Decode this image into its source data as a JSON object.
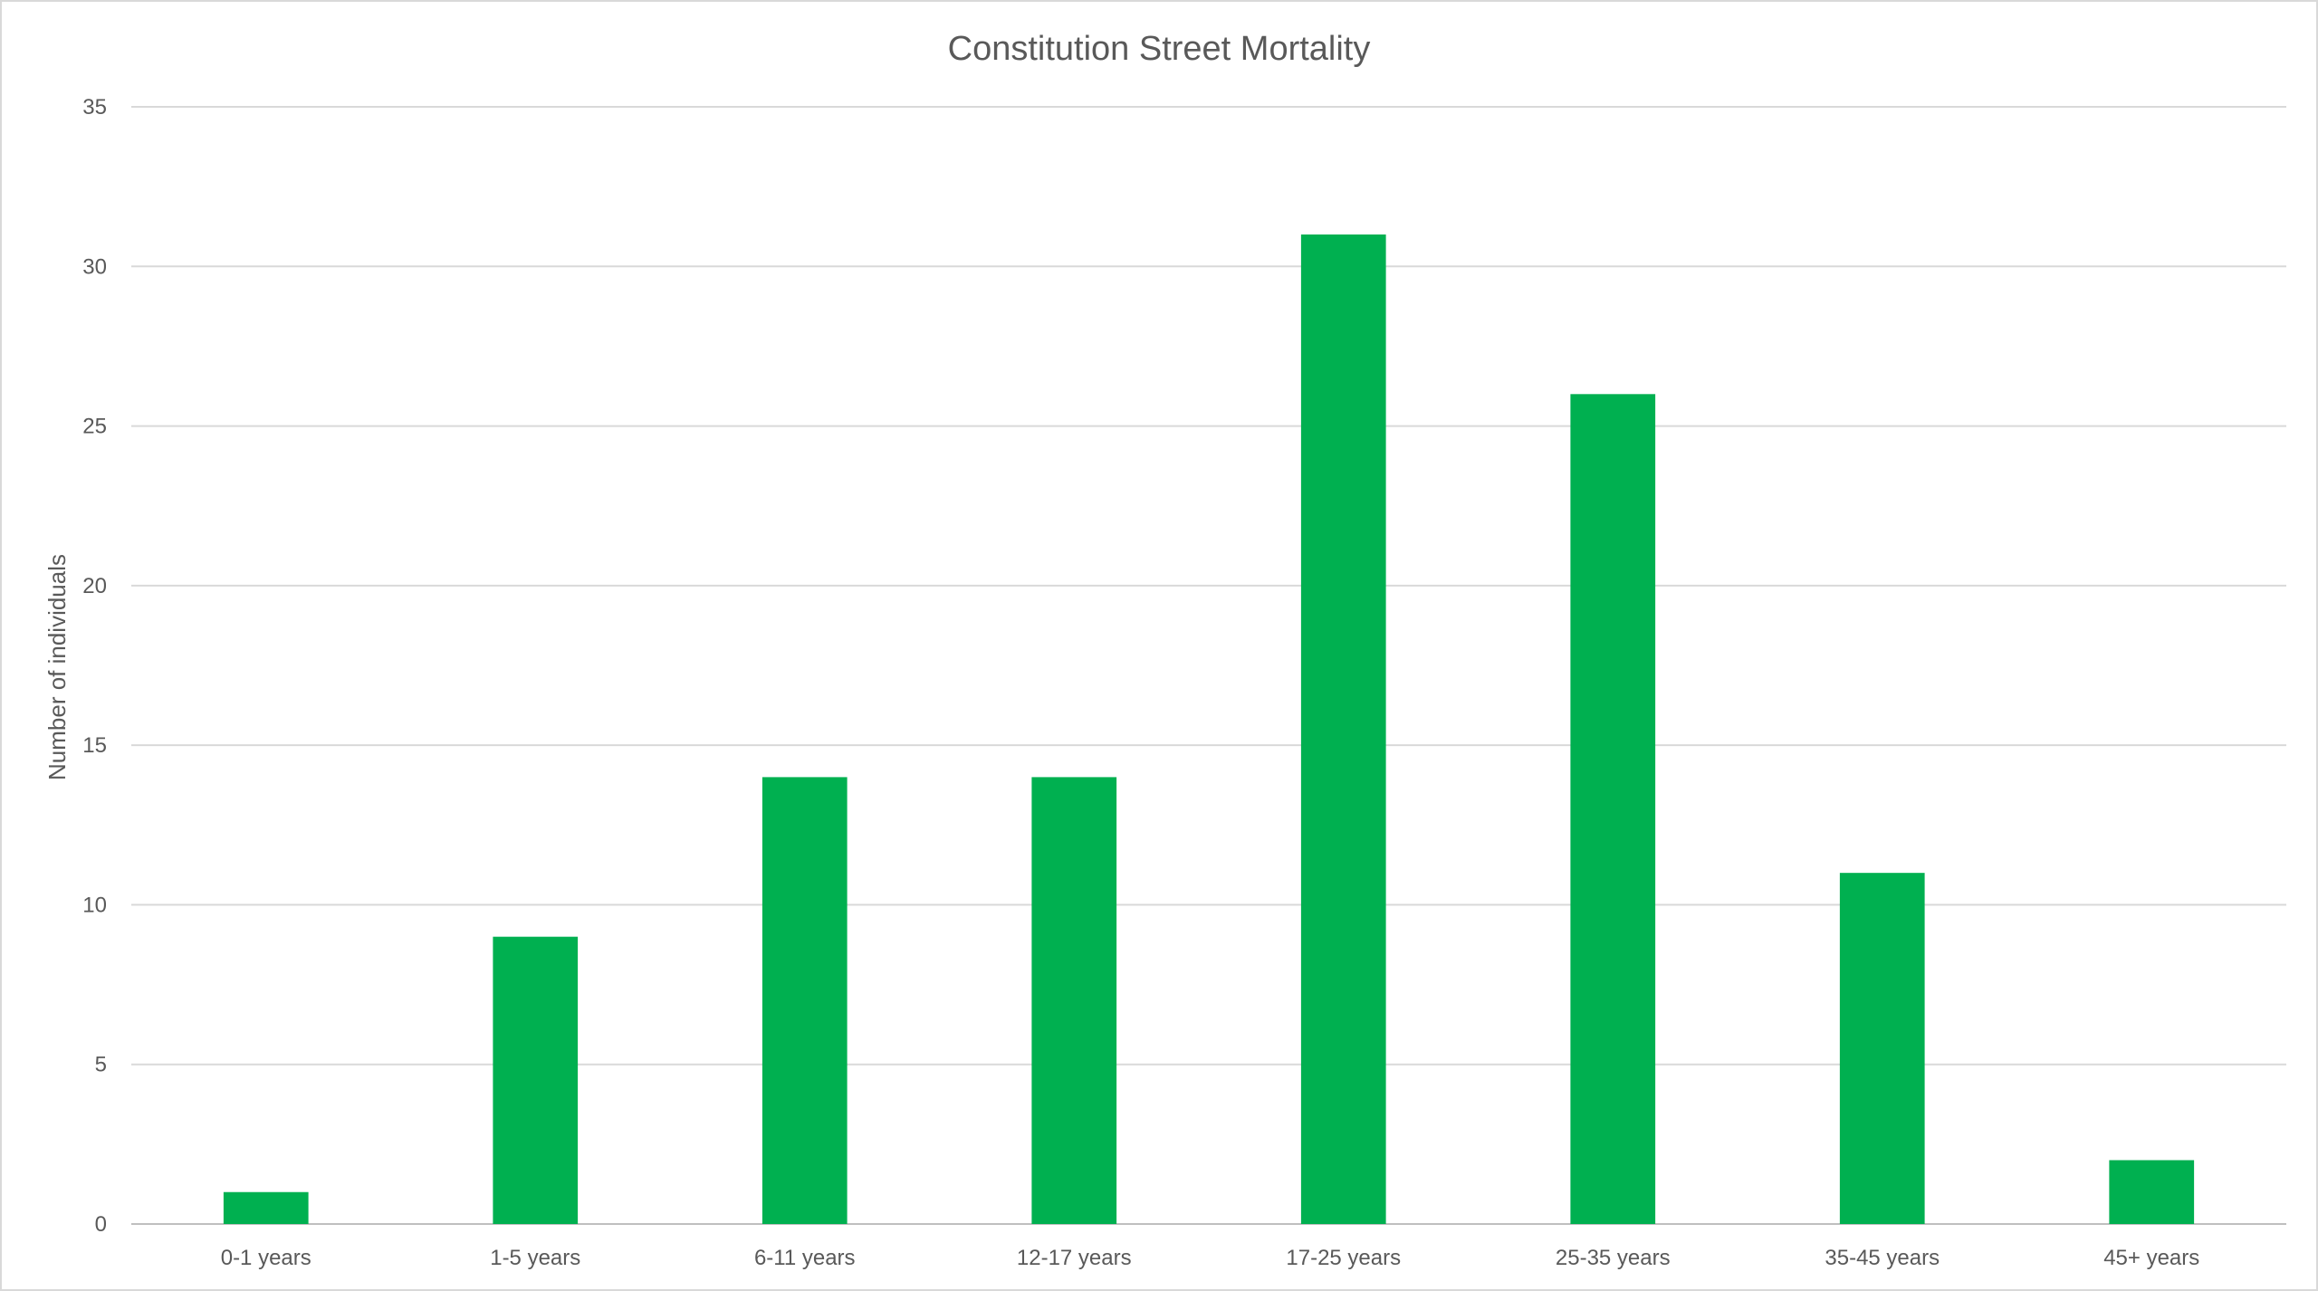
{
  "chart_data": {
    "type": "bar",
    "title": "Constitution Street Mortality",
    "xlabel": "",
    "ylabel": "Number of individuals",
    "categories": [
      "0-1 years",
      "1-5 years",
      "6-11 years",
      "12-17 years",
      "17-25 years",
      "25-35 years",
      "35-45 years",
      "45+ years"
    ],
    "values": [
      1,
      9,
      14,
      14,
      31,
      26,
      11,
      2
    ],
    "ylim": [
      0,
      35
    ],
    "yticks": [
      0,
      5,
      10,
      15,
      20,
      25,
      30,
      35
    ],
    "grid": true,
    "legend": "none",
    "bar_color": "#00b050"
  }
}
